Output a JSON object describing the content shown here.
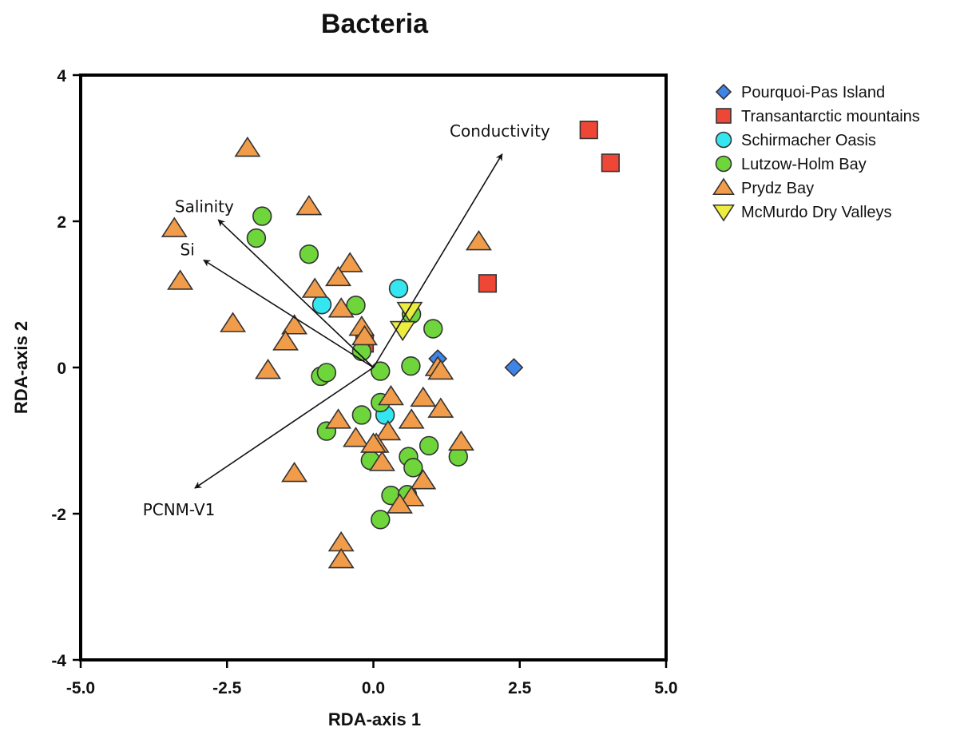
{
  "chart_data": {
    "type": "scatter",
    "title": "Bacteria",
    "xlabel": "RDA-axis 1",
    "ylabel": "RDA-axis 2",
    "xlim": [
      -5.0,
      5.0
    ],
    "ylim": [
      -4,
      4
    ],
    "xticks": [
      -5.0,
      -2.5,
      0.0,
      2.5,
      5.0
    ],
    "xtick_labels": [
      "-5.0",
      "-2.5",
      "0.0",
      "2.5",
      "5.0"
    ],
    "yticks": [
      -4,
      -2,
      0,
      2,
      4
    ],
    "ytick_labels": [
      "-4",
      "-2",
      "0",
      "2",
      "4"
    ],
    "grid": false,
    "legend_position": "right",
    "series": [
      {
        "name": "Pourquoi-Pas Island",
        "marker": "diamond",
        "color": "#3f85e8",
        "points": [
          [
            1.1,
            0.12
          ],
          [
            2.4,
            0.0
          ]
        ]
      },
      {
        "name": "Transantarctic mountains",
        "marker": "square",
        "color": "#ee4736",
        "points": [
          [
            3.68,
            3.25
          ],
          [
            4.05,
            2.8
          ],
          [
            1.95,
            1.15
          ],
          [
            -0.15,
            0.33
          ]
        ]
      },
      {
        "name": "Schirmacher Oasis",
        "marker": "circle",
        "color": "#34e6f0",
        "points": [
          [
            -0.88,
            0.86
          ],
          [
            0.43,
            1.08
          ],
          [
            0.2,
            -0.65
          ]
        ]
      },
      {
        "name": "Lutzow-Holm Bay",
        "marker": "circle",
        "color": "#6ed63b",
        "points": [
          [
            -1.9,
            2.07
          ],
          [
            -2.0,
            1.77
          ],
          [
            -1.1,
            1.55
          ],
          [
            -0.3,
            0.85
          ],
          [
            -0.2,
            0.22
          ],
          [
            -0.9,
            -0.12
          ],
          [
            -0.8,
            -0.07
          ],
          [
            0.12,
            -0.05
          ],
          [
            0.65,
            0.73
          ],
          [
            1.02,
            0.53
          ],
          [
            0.64,
            0.02
          ],
          [
            0.12,
            -0.48
          ],
          [
            -0.2,
            -0.65
          ],
          [
            -0.8,
            -0.87
          ],
          [
            -0.05,
            -1.27
          ],
          [
            0.6,
            -1.22
          ],
          [
            0.68,
            -1.37
          ],
          [
            0.95,
            -1.07
          ],
          [
            1.45,
            -1.22
          ],
          [
            0.3,
            -1.75
          ],
          [
            0.58,
            -1.74
          ],
          [
            0.12,
            -2.08
          ]
        ]
      },
      {
        "name": "Prydz Bay",
        "marker": "triangle-up",
        "color": "#f19c4a",
        "points": [
          [
            -2.15,
            3.0
          ],
          [
            -1.1,
            2.2
          ],
          [
            -3.4,
            1.9
          ],
          [
            -3.3,
            1.18
          ],
          [
            1.8,
            1.72
          ],
          [
            -0.4,
            1.42
          ],
          [
            -0.6,
            1.23
          ],
          [
            -1.0,
            1.07
          ],
          [
            -0.55,
            0.8
          ],
          [
            -2.4,
            0.6
          ],
          [
            -1.35,
            0.57
          ],
          [
            -1.5,
            0.35
          ],
          [
            -0.2,
            0.55
          ],
          [
            -0.15,
            0.42
          ],
          [
            -1.8,
            -0.04
          ],
          [
            1.1,
            0.0
          ],
          [
            1.15,
            -0.05
          ],
          [
            0.3,
            -0.4
          ],
          [
            0.85,
            -0.42
          ],
          [
            1.15,
            -0.57
          ],
          [
            -0.6,
            -0.72
          ],
          [
            0.65,
            -0.72
          ],
          [
            -0.3,
            -0.97
          ],
          [
            0.25,
            -0.88
          ],
          [
            0.05,
            -1.05
          ],
          [
            0.0,
            -1.05
          ],
          [
            1.5,
            -1.02
          ],
          [
            0.15,
            -1.3
          ],
          [
            -1.35,
            -1.45
          ],
          [
            0.85,
            -1.55
          ],
          [
            0.65,
            -1.78
          ],
          [
            0.45,
            -1.88
          ],
          [
            -0.55,
            -2.4
          ],
          [
            -0.55,
            -2.63
          ]
        ]
      },
      {
        "name": "McMurdo Dry Valleys",
        "marker": "triangle-down",
        "color": "#eded40",
        "points": [
          [
            0.62,
            0.78
          ],
          [
            0.5,
            0.52
          ]
        ]
      }
    ],
    "vectors": [
      {
        "label": "Conductivity",
        "x": 2.2,
        "y": 2.92
      },
      {
        "label": "Salinity",
        "x": -2.65,
        "y": 2.02
      },
      {
        "label": "Si",
        "x": -2.9,
        "y": 1.47
      },
      {
        "label": "PCNM-V1",
        "x": -3.05,
        "y": -1.65
      }
    ]
  }
}
